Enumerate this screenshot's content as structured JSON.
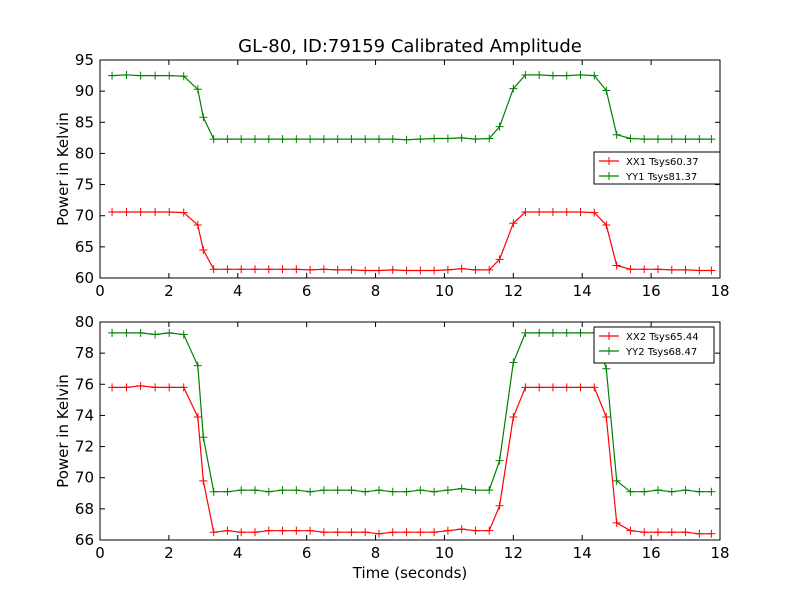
{
  "title": "GL-80, ID:79159 Calibrated Amplitude",
  "colors": {
    "xx": "#ff0000",
    "yy": "#008000"
  },
  "chart_data": [
    {
      "type": "line",
      "ylabel": "Power in Kelvin",
      "xlabel": "",
      "xlim": [
        0,
        18
      ],
      "ylim": [
        60,
        95
      ],
      "xticks": [
        "0",
        "2",
        "4",
        "6",
        "8",
        "10",
        "12",
        "14",
        "16",
        "18"
      ],
      "yticks": [
        "60",
        "65",
        "70",
        "75",
        "80",
        "85",
        "90",
        "95"
      ],
      "legend_position": "center-right",
      "x": [
        0.35,
        0.77,
        1.18,
        1.6,
        2.01,
        2.43,
        2.84,
        3.0,
        3.3,
        3.7,
        4.1,
        4.5,
        4.9,
        5.3,
        5.7,
        6.1,
        6.5,
        6.9,
        7.3,
        7.7,
        8.1,
        8.5,
        8.9,
        9.3,
        9.7,
        10.1,
        10.5,
        10.9,
        11.3,
        11.6,
        12.0,
        12.35,
        12.75,
        13.15,
        13.55,
        13.95,
        14.35,
        14.7,
        15.0,
        15.4,
        15.8,
        16.2,
        16.6,
        17.0,
        17.4,
        17.75
      ],
      "series": [
        {
          "name": "XX1 Tsys60.37",
          "color_key": "xx",
          "values": [
            70.6,
            70.6,
            70.6,
            70.6,
            70.6,
            70.5,
            68.5,
            64.5,
            61.4,
            61.4,
            61.4,
            61.4,
            61.4,
            61.4,
            61.4,
            61.3,
            61.4,
            61.3,
            61.3,
            61.2,
            61.2,
            61.3,
            61.2,
            61.2,
            61.2,
            61.3,
            61.5,
            61.3,
            61.3,
            63.0,
            68.8,
            70.6,
            70.6,
            70.6,
            70.6,
            70.6,
            70.5,
            68.5,
            62.0,
            61.4,
            61.4,
            61.4,
            61.3,
            61.3,
            61.2,
            61.2
          ]
        },
        {
          "name": "YY1 Tsys81.37",
          "color_key": "yy",
          "values": [
            92.5,
            92.6,
            92.5,
            92.5,
            92.5,
            92.4,
            90.3,
            85.8,
            82.3,
            82.3,
            82.3,
            82.3,
            82.3,
            82.3,
            82.3,
            82.3,
            82.3,
            82.3,
            82.3,
            82.3,
            82.3,
            82.3,
            82.2,
            82.3,
            82.4,
            82.4,
            82.5,
            82.3,
            82.4,
            84.3,
            90.4,
            92.6,
            92.6,
            92.5,
            92.5,
            92.6,
            92.5,
            90.1,
            83.0,
            82.4,
            82.3,
            82.3,
            82.3,
            82.3,
            82.3,
            82.3
          ]
        }
      ]
    },
    {
      "type": "line",
      "ylabel": "Power in Kelvin",
      "xlabel": "Time (seconds)",
      "xlim": [
        0,
        18
      ],
      "ylim": [
        66,
        80
      ],
      "xticks": [
        "0",
        "2",
        "4",
        "6",
        "8",
        "10",
        "12",
        "14",
        "16",
        "18"
      ],
      "yticks": [
        "66",
        "68",
        "70",
        "72",
        "74",
        "76",
        "78",
        "80"
      ],
      "legend_position": "top-right",
      "x": [
        0.35,
        0.77,
        1.18,
        1.6,
        2.01,
        2.43,
        2.84,
        3.0,
        3.3,
        3.7,
        4.1,
        4.5,
        4.9,
        5.3,
        5.7,
        6.1,
        6.5,
        6.9,
        7.3,
        7.7,
        8.1,
        8.5,
        8.9,
        9.3,
        9.7,
        10.1,
        10.5,
        10.9,
        11.3,
        11.6,
        12.0,
        12.35,
        12.75,
        13.15,
        13.55,
        13.95,
        14.35,
        14.7,
        15.0,
        15.4,
        15.8,
        16.2,
        16.6,
        17.0,
        17.4,
        17.75
      ],
      "series": [
        {
          "name": "XX2 Tsys65.44",
          "color_key": "xx",
          "values": [
            75.8,
            75.8,
            75.9,
            75.8,
            75.8,
            75.8,
            73.9,
            69.8,
            66.5,
            66.6,
            66.5,
            66.5,
            66.6,
            66.6,
            66.6,
            66.6,
            66.5,
            66.5,
            66.5,
            66.5,
            66.4,
            66.5,
            66.5,
            66.5,
            66.5,
            66.6,
            66.7,
            66.6,
            66.6,
            68.2,
            73.9,
            75.8,
            75.8,
            75.8,
            75.8,
            75.8,
            75.8,
            73.9,
            67.1,
            66.6,
            66.5,
            66.5,
            66.5,
            66.5,
            66.4,
            66.4
          ]
        },
        {
          "name": "YY2 Tsys68.47",
          "color_key": "yy",
          "values": [
            79.3,
            79.3,
            79.3,
            79.2,
            79.3,
            79.2,
            77.2,
            72.6,
            69.1,
            69.1,
            69.2,
            69.2,
            69.1,
            69.2,
            69.2,
            69.1,
            69.2,
            69.2,
            69.2,
            69.1,
            69.2,
            69.1,
            69.1,
            69.2,
            69.1,
            69.2,
            69.3,
            69.2,
            69.2,
            71.1,
            77.4,
            79.3,
            79.3,
            79.3,
            79.3,
            79.3,
            79.3,
            77.0,
            69.8,
            69.1,
            69.1,
            69.2,
            69.1,
            69.2,
            69.1,
            69.1
          ]
        }
      ]
    }
  ]
}
